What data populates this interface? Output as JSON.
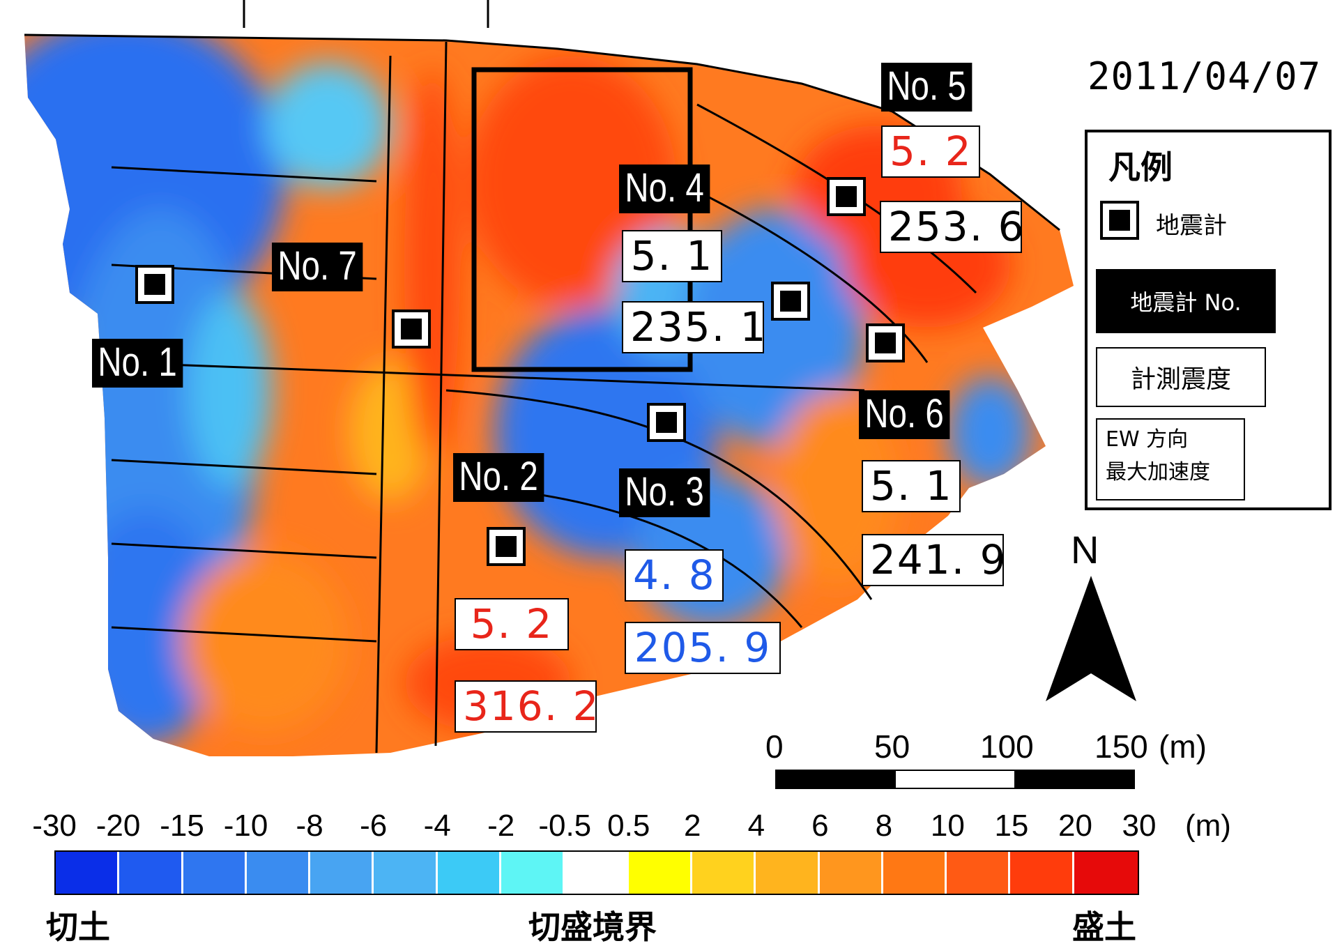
{
  "date": "2011/04/07",
  "legend": {
    "title": "凡例",
    "sensor_label": "地震計",
    "station_no_label": "地震計 No.",
    "intensity_label": "計測震度",
    "acc_line1": "EW 方向",
    "acc_line2": "最大加速度"
  },
  "north_label": "N",
  "scale": {
    "ticks": [
      "0",
      "50",
      "100",
      "150"
    ],
    "unit": "(m)"
  },
  "colorbar": {
    "ticks": [
      "-30",
      "-20",
      "-15",
      "-10",
      "-8",
      "-6",
      "-4",
      "-2",
      "-0.5",
      "0.5",
      "2",
      "4",
      "6",
      "8",
      "10",
      "15",
      "20",
      "30"
    ],
    "unit": "(m)",
    "colors": [
      "#0a2ee8",
      "#1f5af0",
      "#2f76f0",
      "#3a8cf0",
      "#48a4f2",
      "#4cb4f4",
      "#3ccaf6",
      "#5ef5f5",
      "#ffffff",
      "#ffff00",
      "#ffd21e",
      "#ffb41e",
      "#ff961e",
      "#ff7814",
      "#ff5a14",
      "#ff3c0c",
      "#e60a0a"
    ],
    "left_label": "切土",
    "center_label": "切盛境界",
    "right_label": "盛土"
  },
  "stations": [
    {
      "no": "No. 1"
    },
    {
      "no": "No. 2",
      "intensity": "5. 2",
      "acceleration": "316. 2",
      "color": "#e8251a"
    },
    {
      "no": "No. 3",
      "intensity": "4. 8",
      "acceleration": "205. 9",
      "color": "#1f5ae8"
    },
    {
      "no": "No. 4",
      "intensity": "5. 1",
      "acceleration": "235. 1",
      "color": "#000000"
    },
    {
      "no": "No. 5",
      "intensity": "5. 2",
      "acceleration": "253. 6",
      "color_intensity": "#e8251a",
      "color": "#000000"
    },
    {
      "no": "No. 6",
      "intensity": "5. 1",
      "acceleration": "241. 9",
      "color": "#000000"
    },
    {
      "no": "No. 7"
    }
  ]
}
